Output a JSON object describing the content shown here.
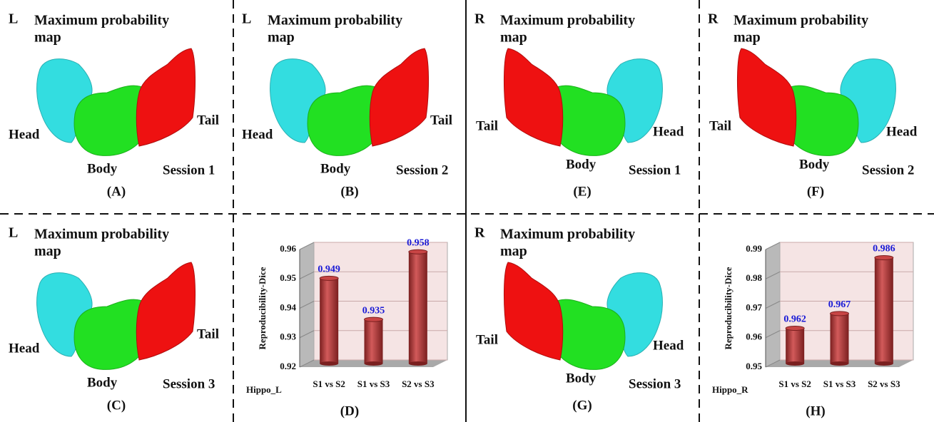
{
  "panels": [
    {
      "side": "L",
      "title": [
        "Maximum probability",
        "map"
      ],
      "head": "Head",
      "body": "Body",
      "tail": "Tail",
      "session": "Session 1",
      "caption": "(A)"
    },
    {
      "side": "L",
      "title": [
        "Maximum probability",
        "map"
      ],
      "head": "Head",
      "body": "Body",
      "tail": "Tail",
      "session": "Session 2",
      "caption": "(B)"
    },
    {
      "side": "L",
      "title": [
        "Maximum probability",
        "map"
      ],
      "head": "Head",
      "body": "Body",
      "tail": "Tail",
      "session": "Session 3",
      "caption": "(C)"
    },
    {
      "side": "R",
      "title": [
        "Maximum probability",
        "map"
      ],
      "head": "Head",
      "body": "Body",
      "tail": "Tail",
      "session": "Session 1",
      "caption": "(E)"
    },
    {
      "side": "R",
      "title": [
        "Maximum probability",
        "map"
      ],
      "head": "Head",
      "body": "Body",
      "tail": "Tail",
      "session": "Session 2",
      "caption": "(F)"
    },
    {
      "side": "R",
      "title": [
        "Maximum probability",
        "map"
      ],
      "head": "Head",
      "body": "Body",
      "tail": "Tail",
      "session": "Session 3",
      "caption": "(G)"
    }
  ],
  "chart_data": [
    {
      "type": "bar",
      "y_label": "Reproducibility-Dice",
      "x_label": "Hippo_L",
      "caption": "(D)",
      "categories": [
        "S1 vs S2",
        "S1 vs S3",
        "S2 vs S3"
      ],
      "values": [
        0.949,
        0.935,
        0.958
      ],
      "color": "#b83a3a",
      "ylim": [
        0.92,
        0.96
      ],
      "yticks": [
        0.92,
        0.93,
        0.94,
        0.95,
        0.96
      ],
      "grid": true
    },
    {
      "type": "bar",
      "y_label": "Reproducibility-Dice",
      "x_label": "Hippo_R",
      "caption": "(H)",
      "categories": [
        "S1 vs S2",
        "S1 vs S3",
        "S2 vs S3"
      ],
      "values": [
        0.962,
        0.967,
        0.986
      ],
      "color": "#b83a3a",
      "ylim": [
        0.95,
        0.99
      ],
      "yticks": [
        0.95,
        0.96,
        0.97,
        0.98,
        0.99
      ],
      "grid": true
    }
  ]
}
